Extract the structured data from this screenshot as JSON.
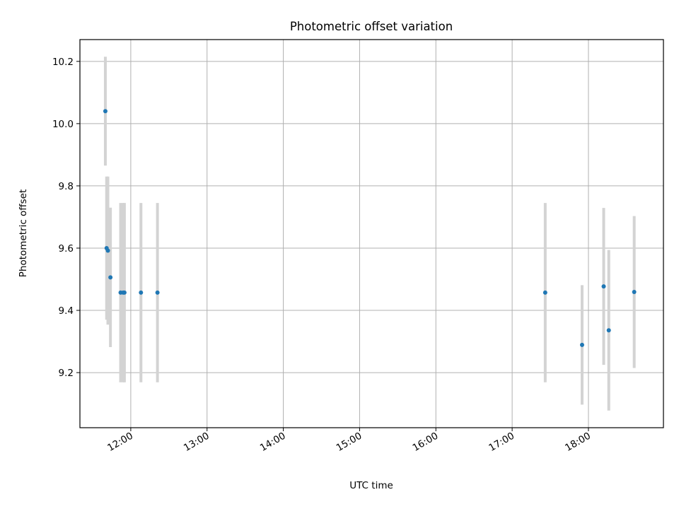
{
  "chart_data": {
    "type": "scatter",
    "title": "Photometric offset variation",
    "xlabel": "UTC time",
    "ylabel": "Photometric offset",
    "x_scale": "time",
    "xlim": [
      "11:20",
      "18:59"
    ],
    "ylim": [
      9.023,
      10.27
    ],
    "x_ticks": [
      "12:00",
      "13:00",
      "14:00",
      "15:00",
      "16:00",
      "17:00",
      "18:00"
    ],
    "y_ticks": [
      9.2,
      9.4,
      9.6,
      9.8,
      10.0,
      10.2
    ],
    "y_tick_labels": [
      "9.2",
      "9.4",
      "9.6",
      "9.8",
      "10.0",
      "10.2"
    ],
    "grid": true,
    "legend": "none",
    "marker_color": "#1f77b4",
    "errorbar_color": "#d3d3d3",
    "points": [
      {
        "time": "11:40",
        "y": 10.04,
        "err": 0.175
      },
      {
        "time": "11:41",
        "y": 9.6,
        "err": 0.23
      },
      {
        "time": "11:42",
        "y": 9.592,
        "err": 0.238
      },
      {
        "time": "11:44",
        "y": 9.506,
        "err": 0.224
      },
      {
        "time": "11:52",
        "y": 9.457,
        "err": 0.288
      },
      {
        "time": "11:54",
        "y": 9.457,
        "err": 0.288
      },
      {
        "time": "11:55",
        "y": 9.457,
        "err": 0.288
      },
      {
        "time": "12:08",
        "y": 9.457,
        "err": 0.288
      },
      {
        "time": "12:21",
        "y": 9.457,
        "err": 0.288
      },
      {
        "time": "17:26",
        "y": 9.457,
        "err": 0.288
      },
      {
        "time": "17:55",
        "y": 9.289,
        "err": 0.192
      },
      {
        "time": "18:12",
        "y": 9.477,
        "err": 0.252
      },
      {
        "time": "18:16",
        "y": 9.336,
        "err": 0.258
      },
      {
        "time": "18:36",
        "y": 9.459,
        "err": 0.244
      }
    ]
  }
}
